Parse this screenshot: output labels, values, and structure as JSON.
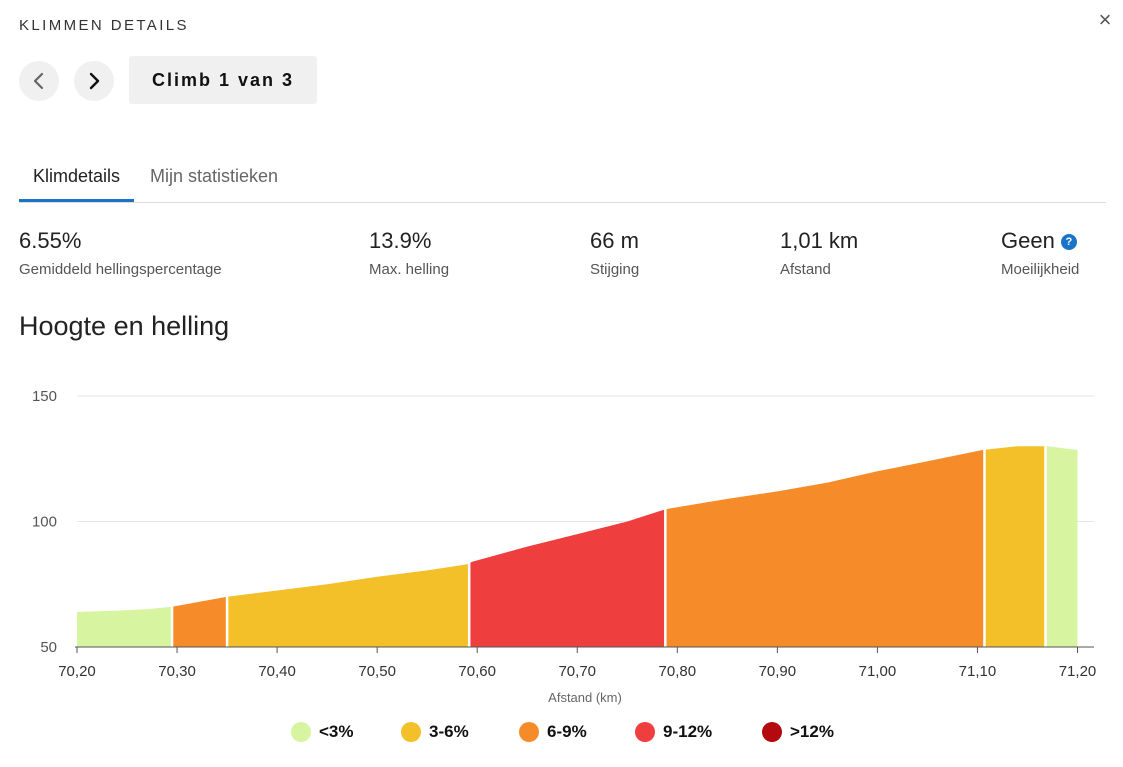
{
  "header": {
    "title": "KLIMMEN DETAILS",
    "climb_label": "Climb 1 van 3"
  },
  "icons": {
    "close": "close-icon",
    "prev": "chevron-left-icon",
    "next": "chevron-right-icon",
    "help": "help-icon"
  },
  "tabs": [
    {
      "label": "Klimdetails",
      "active": true
    },
    {
      "label": "Mijn statistieken",
      "active": false
    }
  ],
  "stats": [
    {
      "value": "6.55%",
      "label": "Gemiddeld hellingspercentage"
    },
    {
      "value": "13.9%",
      "label": "Max. helling"
    },
    {
      "value": "66 m",
      "label": "Stijging"
    },
    {
      "value": "1,01 km",
      "label": "Afstand"
    },
    {
      "value": "Geen",
      "label": "Moeilijkheid"
    }
  ],
  "section_title": "Hoogte en helling",
  "colors": {
    "accent": "#1a73c8",
    "lt3": "#d7f5a0",
    "3to6": "#f4c02a",
    "6to9": "#f68c29",
    "9to12": "#ee3e3e",
    "gt12": "#b3090f"
  },
  "chart_data": {
    "type": "area",
    "title": "Hoogte en helling",
    "xlabel": "Afstand (km)",
    "ylabel": "",
    "xlim": [
      70.2,
      71.21
    ],
    "ylim": [
      50,
      150
    ],
    "yticks": [
      50,
      100,
      150
    ],
    "xticks": [
      "70,20",
      "70,30",
      "70,40",
      "70,50",
      "70,60",
      "70,70",
      "70,80",
      "70,90",
      "71,00",
      "71,10",
      "71,20"
    ],
    "grid": true,
    "profile": [
      [
        70.2,
        64
      ],
      [
        70.24,
        64.5
      ],
      [
        70.27,
        65
      ],
      [
        70.295,
        66
      ],
      [
        70.35,
        70
      ],
      [
        70.4,
        72.5
      ],
      [
        70.45,
        75
      ],
      [
        70.5,
        78
      ],
      [
        70.55,
        80.5
      ],
      [
        70.59,
        83
      ],
      [
        70.595,
        84
      ],
      [
        70.65,
        90
      ],
      [
        70.7,
        95
      ],
      [
        70.75,
        100
      ],
      [
        70.785,
        104.5
      ],
      [
        70.79,
        105
      ],
      [
        70.85,
        109
      ],
      [
        70.9,
        112
      ],
      [
        70.95,
        115.5
      ],
      [
        71.0,
        120
      ],
      [
        71.05,
        124
      ],
      [
        71.105,
        128.5
      ],
      [
        71.14,
        130
      ],
      [
        71.17,
        130
      ],
      [
        71.2,
        128.5
      ]
    ],
    "segments": [
      {
        "from": 70.2,
        "to": 70.295,
        "category": "<3%"
      },
      {
        "from": 70.295,
        "to": 70.35,
        "category": "6-9%"
      },
      {
        "from": 70.35,
        "to": 70.592,
        "category": "3-6%"
      },
      {
        "from": 70.592,
        "to": 70.788,
        "category": "9-12%"
      },
      {
        "from": 70.788,
        "to": 71.107,
        "category": "6-9%"
      },
      {
        "from": 71.107,
        "to": 71.168,
        "category": "3-6%"
      },
      {
        "from": 71.168,
        "to": 71.2,
        "category": "<3%"
      }
    ],
    "legend": [
      {
        "label": "<3%",
        "color": "#d7f5a0"
      },
      {
        "label": "3-6%",
        "color": "#f4c02a"
      },
      {
        "label": "6-9%",
        "color": "#f68c29"
      },
      {
        "label": "9-12%",
        "color": "#ee3e3e"
      },
      {
        "label": ">12%",
        "color": "#b3090f"
      }
    ],
    "legend_position": "bottom-center"
  }
}
